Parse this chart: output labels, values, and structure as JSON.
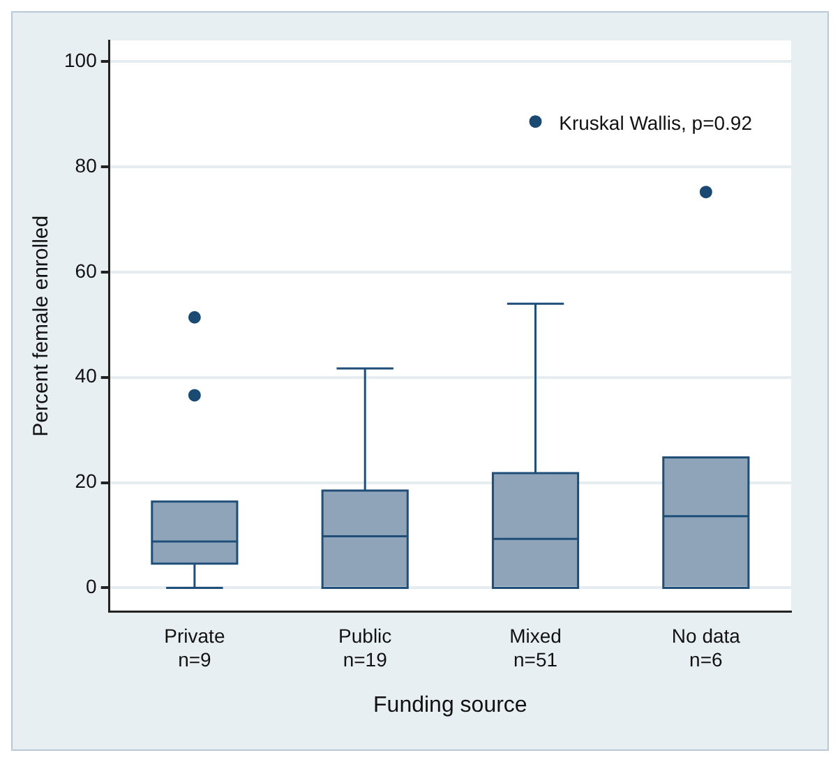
{
  "chart_data": {
    "type": "box",
    "xlabel": "Funding source",
    "ylabel": "Percent female enrolled",
    "categories": [
      "Private\nn=9",
      "Public\nn=19",
      "Mixed\nn=51",
      "No data\nn=6"
    ],
    "boxes": [
      {
        "low": 0,
        "q1": 4.6,
        "median": 8.8,
        "q3": 16.4,
        "high": 16.4,
        "outliers": [
          51.4,
          36.6
        ]
      },
      {
        "low": 0,
        "q1": 0,
        "median": 9.8,
        "q3": 18.5,
        "high": 41.7
      },
      {
        "low": 0,
        "q1": 0,
        "median": 9.3,
        "q3": 21.8,
        "high": 54,
        "outliers": [
          88.6
        ]
      },
      {
        "low": 0,
        "q1": 0,
        "median": 13.6,
        "q3": 24.8,
        "high": 24.8,
        "outliers": [
          75.2
        ]
      }
    ],
    "color": "#8fa4b8",
    "ylim": [
      -4.5,
      104
    ],
    "yticks": [
      0,
      20,
      40,
      60,
      80,
      100
    ],
    "grid": "y",
    "legend": false,
    "annotations": [
      "Kruskal Wallis, p=0.92"
    ]
  }
}
